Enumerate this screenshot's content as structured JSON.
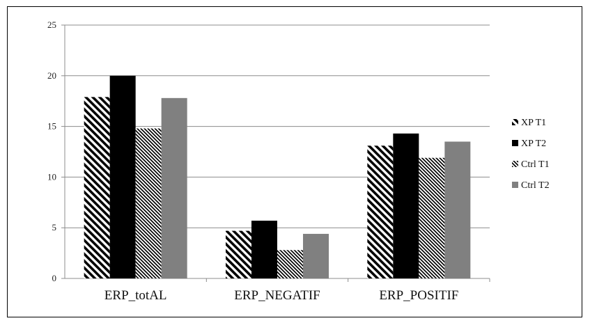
{
  "chart_data": {
    "type": "bar",
    "title": "",
    "xlabel": "",
    "ylabel": "",
    "categories": [
      "ERP_totAL",
      "ERP_NEGATIF",
      "ERP_POSITIF"
    ],
    "series": [
      {
        "name": "XP T1",
        "values": [
          17.9,
          4.7,
          13.1
        ],
        "fill": "diag-wide",
        "color": "#000000"
      },
      {
        "name": "XP T2",
        "values": [
          20.0,
          5.7,
          14.3
        ],
        "fill": "solid",
        "color": "#000000"
      },
      {
        "name": "Ctrl T1",
        "values": [
          14.8,
          2.8,
          11.9
        ],
        "fill": "diag-fine",
        "color": "#000000"
      },
      {
        "name": "Ctrl T2",
        "values": [
          17.8,
          4.4,
          13.5
        ],
        "fill": "solid",
        "color": "#808080"
      }
    ],
    "ylim": [
      0,
      25
    ],
    "yticks": [
      0,
      5,
      10,
      15,
      20,
      25
    ],
    "grid": true,
    "legend_position": "right",
    "colors": {
      "gridline": "#8c8c8c",
      "axis": "#8c8c8c",
      "frame": "#000000"
    }
  }
}
